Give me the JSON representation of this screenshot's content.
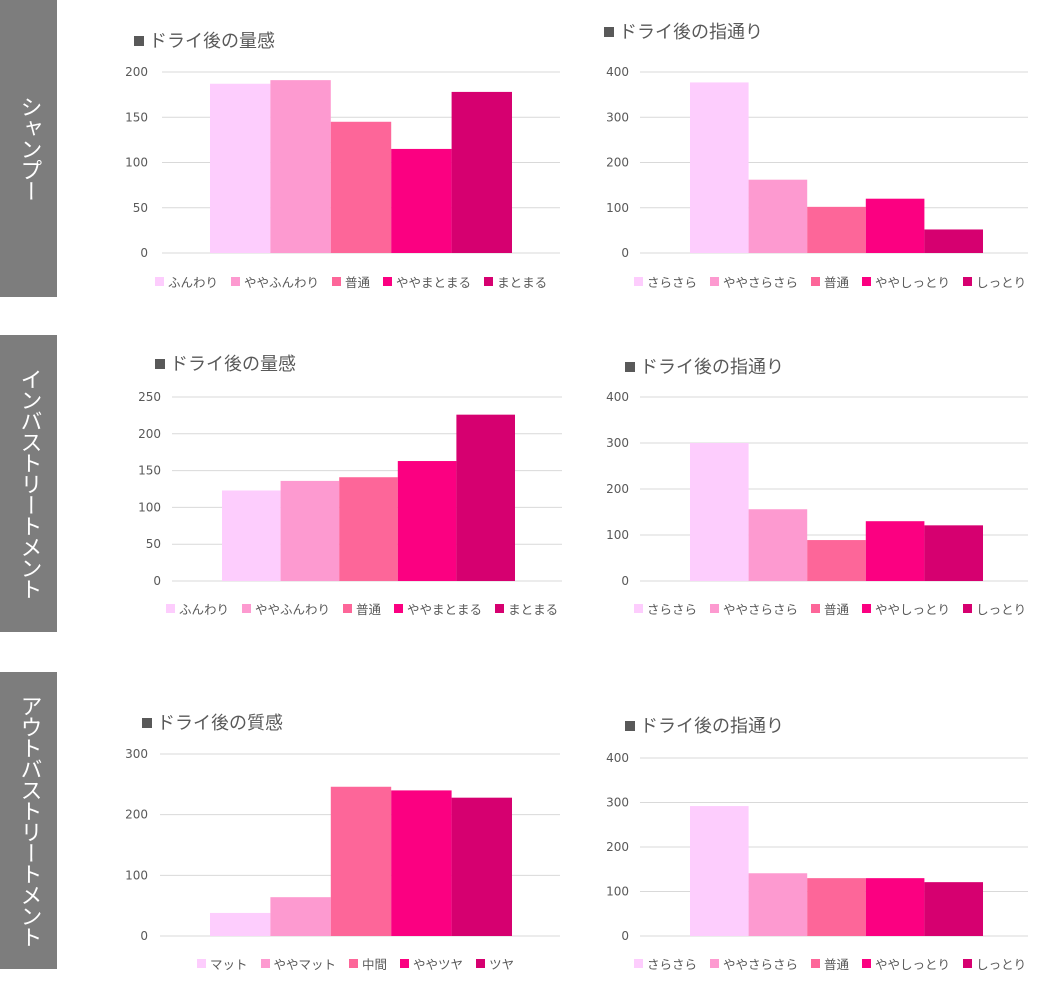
{
  "sections": [
    {
      "label": "シャンプー"
    },
    {
      "label": "インバストリートメント"
    },
    {
      "label": "アウトバストリートメント"
    }
  ],
  "colors": [
    "#fdcdfd",
    "#fd9ad0",
    "#fd6699",
    "#fb0081",
    "#d60070"
  ],
  "chart_data": [
    {
      "type": "bar",
      "title": "■ドライ後の量感",
      "categories": [
        "ふんわり",
        "ややふんわり",
        "普通",
        "ややまとまる",
        "まとまる"
      ],
      "values": [
        187,
        191,
        145,
        115,
        178
      ],
      "yticks": [
        0,
        50,
        100,
        150,
        200
      ],
      "ylim": [
        0,
        200
      ]
    },
    {
      "type": "bar",
      "title": "■ドライ後の指通り",
      "categories": [
        "さらさら",
        "ややさらさら",
        "普通",
        "ややしっとり",
        "しっとり"
      ],
      "values": [
        377,
        162,
        102,
        120,
        52
      ],
      "yticks": [
        0,
        100,
        200,
        300,
        400
      ],
      "ylim": [
        0,
        400
      ]
    },
    {
      "type": "bar",
      "title": "■ドライ後の量感",
      "categories": [
        "ふんわり",
        "ややふんわり",
        "普通",
        "ややまとまる",
        "まとまる"
      ],
      "values": [
        123,
        136,
        141,
        163,
        226
      ],
      "yticks": [
        0,
        50,
        100,
        150,
        200,
        250
      ],
      "ylim": [
        0,
        250
      ]
    },
    {
      "type": "bar",
      "title": "■ドライ後の指通り",
      "categories": [
        "さらさら",
        "ややさらさら",
        "普通",
        "ややしっとり",
        "しっとり"
      ],
      "values": [
        300,
        156,
        89,
        130,
        121
      ],
      "yticks": [
        0,
        100,
        200,
        300,
        400
      ],
      "ylim": [
        0,
        400
      ]
    },
    {
      "type": "bar",
      "title": "■ドライ後の質感",
      "categories": [
        "マット",
        "ややマット",
        "中間",
        "ややツヤ",
        "ツヤ"
      ],
      "values": [
        38,
        64,
        246,
        240,
        228
      ],
      "yticks": [
        0,
        100,
        200,
        300
      ],
      "ylim": [
        0,
        300
      ]
    },
    {
      "type": "bar",
      "title": "■ドライ後の指通り",
      "categories": [
        "さらさら",
        "ややさらさら",
        "普通",
        "ややしっとり",
        "しっとり"
      ],
      "values": [
        292,
        141,
        130,
        130,
        121
      ],
      "yticks": [
        0,
        100,
        200,
        300,
        400
      ],
      "ylim": [
        0,
        400
      ]
    }
  ]
}
